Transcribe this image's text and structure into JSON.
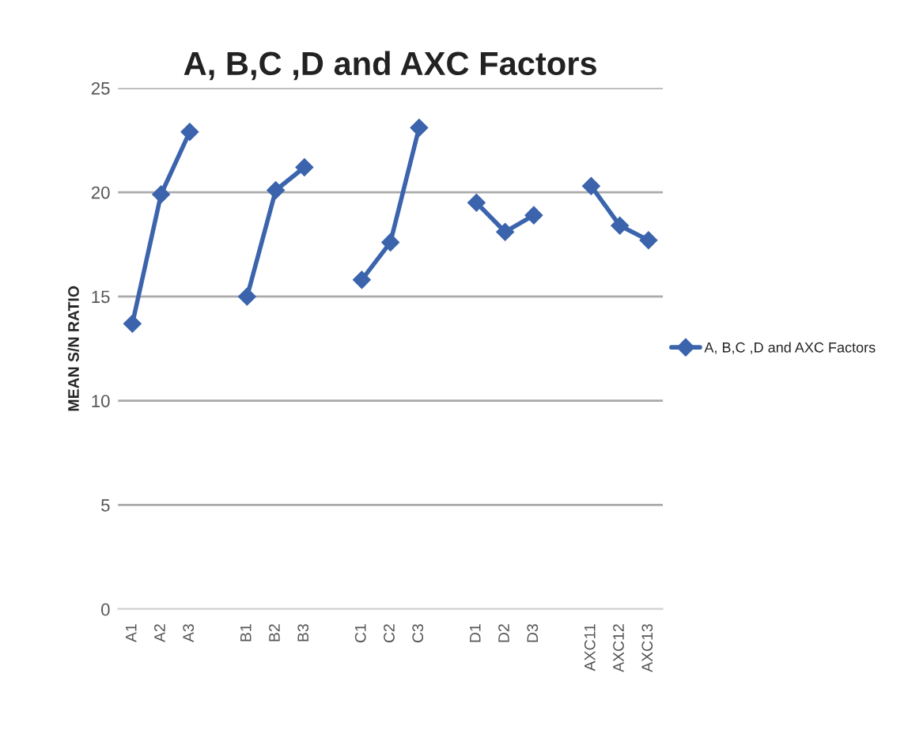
{
  "chart_data": {
    "type": "line",
    "title": "A, B,C ,D and AXC Factors",
    "ylabel": "MEAN S/N RATIO",
    "categories": [
      "A1",
      "A2",
      "A3",
      null,
      "B1",
      "B2",
      "B3",
      null,
      "C1",
      "C2",
      "C3",
      null,
      "D1",
      "D2",
      "D3",
      null,
      "AXC11",
      "AXC12",
      "AXC13"
    ],
    "series": [
      {
        "name": "A, B,C ,D and AXC Factors",
        "color": "#3b64ad",
        "values": [
          13.7,
          19.9,
          22.9,
          null,
          15.0,
          20.1,
          21.2,
          null,
          15.8,
          17.6,
          23.1,
          null,
          19.5,
          18.1,
          18.9,
          null,
          20.3,
          18.4,
          17.7
        ]
      }
    ],
    "ylim": [
      0,
      25
    ],
    "yticks": [
      0,
      5,
      10,
      15,
      20,
      25
    ],
    "grid": "y",
    "legend": "right",
    "marker": "diamond",
    "line_style": "solid"
  }
}
